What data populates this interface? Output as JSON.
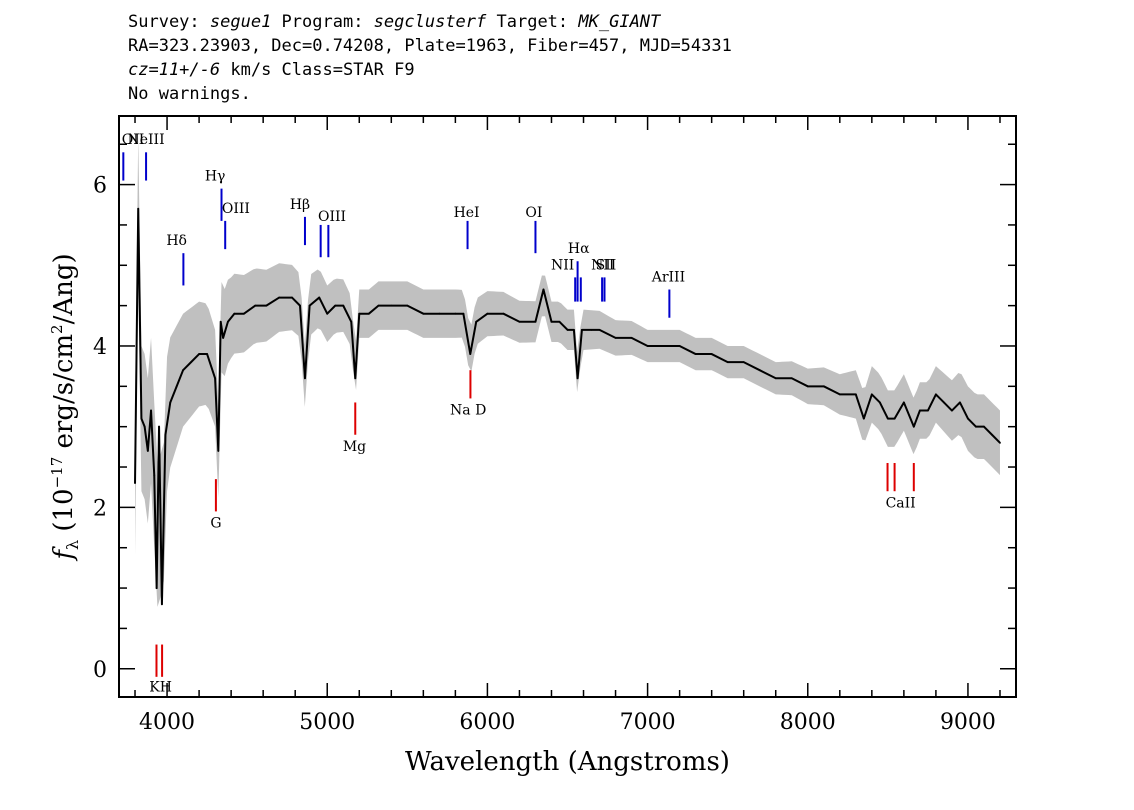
{
  "header": {
    "survey_label": "Survey: ",
    "survey": "segue1",
    "program_label": " Program: ",
    "program": "segclusterf",
    "target_label": " Target: ",
    "target": "MK_GIANT",
    "line2": "RA=323.23903, Dec=0.74208, Plate=1963, Fiber=457, MJD=54331",
    "cz": "cz=11+/-6",
    "line3_rest": " km/s Class=STAR F9",
    "line4": "No warnings."
  },
  "chart_data": {
    "type": "line",
    "title": "",
    "xlabel": "Wavelength (Angstroms)",
    "ylabel_main": "f",
    "ylabel_sub": "λ",
    "ylabel_rest1": " (10",
    "ylabel_exp1": "−17",
    "ylabel_rest2": " erg/s/cm",
    "ylabel_exp2": "2",
    "ylabel_rest3": "/Ang)",
    "xlim": [
      3700,
      9300
    ],
    "ylim": [
      -0.35,
      6.85
    ],
    "x_ticks": [
      4000,
      5000,
      6000,
      7000,
      8000,
      9000
    ],
    "x_tick_labels": [
      "4000",
      "5000",
      "6000",
      "7000",
      "8000",
      "9000"
    ],
    "y_ticks": [
      0,
      2,
      4,
      6
    ],
    "y_tick_labels": [
      "0",
      "2",
      "4",
      "6"
    ],
    "colors": {
      "flux": "#000000",
      "error": "#c0c0c0",
      "emission": "#0000cc",
      "absorption": "#dd0000"
    },
    "series": [
      {
        "role": "flux",
        "x": [
          3800,
          3820,
          3840,
          3860,
          3880,
          3900,
          3920,
          3935,
          3950,
          3968,
          3990,
          4020,
          4060,
          4100,
          4150,
          4200,
          4250,
          4300,
          4320,
          4335,
          4350,
          4380,
          4420,
          4480,
          4550,
          4620,
          4700,
          4780,
          4830,
          4861,
          4890,
          4950,
          5000,
          5050,
          5100,
          5150,
          5175,
          5200,
          5260,
          5320,
          5400,
          5500,
          5600,
          5700,
          5800,
          5850,
          5893,
          5930,
          6000,
          6100,
          6200,
          6300,
          6350,
          6400,
          6450,
          6500,
          6540,
          6563,
          6590,
          6650,
          6700,
          6800,
          6900,
          7000,
          7100,
          7200,
          7300,
          7400,
          7500,
          7600,
          7700,
          7800,
          7900,
          8000,
          8100,
          8200,
          8300,
          8350,
          8400,
          8450,
          8500,
          8542,
          8600,
          8662,
          8700,
          8750,
          8800,
          8850,
          8900,
          8950,
          9000,
          9050,
          9100,
          9150,
          9200
        ],
        "y": [
          2.3,
          5.7,
          3.1,
          3.0,
          2.7,
          3.2,
          2.4,
          1.0,
          3.0,
          0.8,
          2.9,
          3.3,
          3.5,
          3.7,
          3.8,
          3.9,
          3.9,
          3.6,
          2.7,
          4.3,
          4.1,
          4.3,
          4.4,
          4.4,
          4.5,
          4.5,
          4.6,
          4.6,
          4.5,
          3.6,
          4.5,
          4.6,
          4.4,
          4.5,
          4.5,
          4.3,
          3.6,
          4.4,
          4.4,
          4.5,
          4.5,
          4.5,
          4.4,
          4.4,
          4.4,
          4.4,
          3.9,
          4.3,
          4.4,
          4.4,
          4.3,
          4.3,
          4.7,
          4.3,
          4.3,
          4.2,
          4.2,
          3.6,
          4.2,
          4.2,
          4.2,
          4.1,
          4.1,
          4.0,
          4.0,
          4.0,
          3.9,
          3.9,
          3.8,
          3.8,
          3.7,
          3.6,
          3.6,
          3.5,
          3.5,
          3.4,
          3.4,
          3.1,
          3.4,
          3.3,
          3.1,
          3.1,
          3.3,
          3.0,
          3.2,
          3.2,
          3.4,
          3.3,
          3.2,
          3.3,
          3.1,
          3.0,
          3.0,
          2.9,
          2.8
        ]
      },
      {
        "role": "error",
        "x": [
          3800,
          3950,
          4100,
          4300,
          4400,
          4600,
          4800,
          5000,
          5200,
          5400,
          5600,
          5800,
          6000,
          6200,
          6400,
          6600,
          6800,
          7000,
          7200,
          7400,
          7600,
          7800,
          8000,
          8200,
          8400,
          8600,
          8800,
          9000,
          9200
        ],
        "y": [
          0.9,
          0.9,
          0.7,
          0.6,
          0.5,
          0.45,
          0.4,
          0.35,
          0.3,
          0.3,
          0.3,
          0.3,
          0.28,
          0.26,
          0.25,
          0.25,
          0.22,
          0.2,
          0.2,
          0.2,
          0.2,
          0.2,
          0.22,
          0.25,
          0.35,
          0.35,
          0.35,
          0.4,
          0.4
        ]
      }
    ],
    "emission_lines": [
      {
        "label": "OII",
        "x": 3727,
        "y_top": 6.4,
        "y_bottom": 6.05
      },
      {
        "label": "NeIII",
        "x": 3869,
        "y_top": 6.4,
        "y_bottom": 6.05
      },
      {
        "label": "Hδ",
        "x": 4102,
        "y_top": 5.15,
        "y_bottom": 4.75
      },
      {
        "label": "Hγ",
        "x": 4340,
        "y_top": 5.95,
        "y_bottom": 5.55
      },
      {
        "label": "OIII",
        "x": 4363,
        "y_top": 5.55,
        "y_bottom": 5.2
      },
      {
        "label": "Hβ",
        "x": 4861,
        "y_top": 5.6,
        "y_bottom": 5.25
      },
      {
        "label": "OIII",
        "x": 4959,
        "y_top": 5.5,
        "y_bottom": 5.1
      },
      {
        "label": "OIII",
        "x": 5007,
        "y_top": 5.5,
        "y_bottom": 5.1
      },
      {
        "label": "HeI",
        "x": 5876,
        "y_top": 5.55,
        "y_bottom": 5.2
      },
      {
        "label": "OI",
        "x": 6300,
        "y_top": 5.55,
        "y_bottom": 5.15
      },
      {
        "label": "NII",
        "x": 6548,
        "y_top": 4.85,
        "y_bottom": 4.55
      },
      {
        "label": "Hα",
        "x": 6563,
        "y_top": 5.05,
        "y_bottom": 4.55
      },
      {
        "label": "NII",
        "x": 6583,
        "y_top": 4.85,
        "y_bottom": 4.55
      },
      {
        "label": "SII",
        "x": 6716,
        "y_top": 4.85,
        "y_bottom": 4.55
      },
      {
        "label": "SII",
        "x": 6731,
        "y_top": 4.85,
        "y_bottom": 4.55
      },
      {
        "label": "ArIII",
        "x": 7136,
        "y_top": 4.7,
        "y_bottom": 4.35
      }
    ],
    "absorption_lines": [
      {
        "label": "K",
        "x": 3934,
        "y_top": 0.3,
        "y_bottom": -0.1
      },
      {
        "label": "H",
        "x": 3969,
        "y_top": 0.3,
        "y_bottom": -0.1
      },
      {
        "label": "G",
        "x": 4305,
        "y_top": 2.35,
        "y_bottom": 1.95
      },
      {
        "label": "Mg",
        "x": 5175,
        "y_top": 3.3,
        "y_bottom": 2.9
      },
      {
        "label": "Na D",
        "x": 5894,
        "y_top": 3.7,
        "y_bottom": 3.35
      },
      {
        "label": "CaII",
        "x": 8498,
        "y_top": 2.55,
        "y_bottom": 2.2
      },
      {
        "label": "CaII",
        "x": 8542,
        "y_top": 2.55,
        "y_bottom": 2.2
      },
      {
        "label": "CaII",
        "x": 8662,
        "y_top": 2.55,
        "y_bottom": 2.2
      }
    ],
    "line_labels": [
      {
        "text": "OII",
        "x": 3727,
        "y": 6.5,
        "kind": "emission"
      },
      {
        "text": "NeIII",
        "x": 3869,
        "y": 6.5,
        "kind": "emission"
      },
      {
        "text": "Hδ",
        "x": 4060,
        "y": 5.25,
        "kind": "emission"
      },
      {
        "text": "Hγ",
        "x": 4300,
        "y": 6.05,
        "kind": "emission"
      },
      {
        "text": "OIII",
        "x": 4430,
        "y": 5.65,
        "kind": "emission"
      },
      {
        "text": "Hβ",
        "x": 4830,
        "y": 5.7,
        "kind": "emission"
      },
      {
        "text": "OIII",
        "x": 5030,
        "y": 5.55,
        "kind": "emission"
      },
      {
        "text": "HeI",
        "x": 5870,
        "y": 5.6,
        "kind": "emission"
      },
      {
        "text": "OI",
        "x": 6290,
        "y": 5.6,
        "kind": "emission"
      },
      {
        "text": "NII",
        "x": 6470,
        "y": 4.95,
        "kind": "emission"
      },
      {
        "text": "Hα",
        "x": 6570,
        "y": 5.15,
        "kind": "emission"
      },
      {
        "text": "NII",
        "x": 6720,
        "y": 4.95,
        "kind": "emission"
      },
      {
        "text": "SII",
        "x": 6740,
        "y": 4.95,
        "kind": "emission"
      },
      {
        "text": "ArIII",
        "x": 7130,
        "y": 4.8,
        "kind": "emission"
      },
      {
        "text": "KH",
        "x": 3960,
        "y": -0.28,
        "kind": "absorption"
      },
      {
        "text": "G",
        "x": 4305,
        "y": 1.75,
        "kind": "absorption"
      },
      {
        "text": "Mg",
        "x": 5170,
        "y": 2.7,
        "kind": "absorption"
      },
      {
        "text": "Na D",
        "x": 5880,
        "y": 3.15,
        "kind": "absorption"
      },
      {
        "text": "CaII",
        "x": 8580,
        "y": 2.0,
        "kind": "absorption"
      }
    ]
  }
}
